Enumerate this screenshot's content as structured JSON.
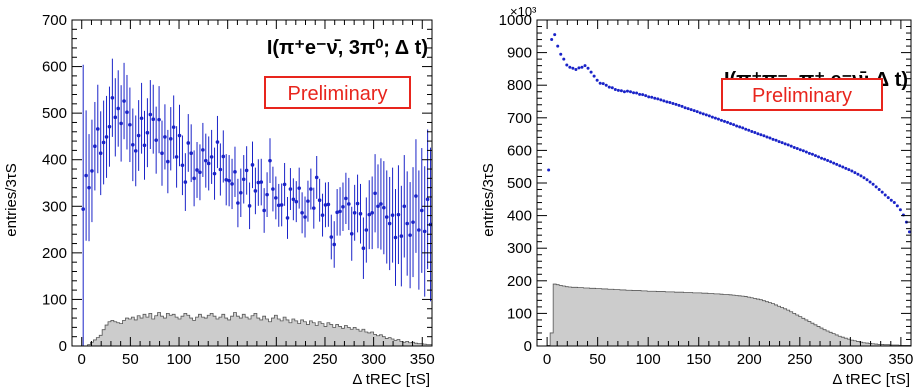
{
  "panels": [
    {
      "ylabel": "entries/3τS",
      "title": "I(π⁺e⁻ν̄, 3π⁰; Δ t)",
      "badge": "Preliminary",
      "xlabel": "Δ tREC [τS]",
      "exponent": "",
      "xticks": [
        "0",
        "50",
        "100",
        "150",
        "200",
        "250",
        "300",
        "350"
      ],
      "yticks": [
        "0",
        "100",
        "200",
        "300",
        "400",
        "500",
        "600",
        "700"
      ]
    },
    {
      "ylabel": "entries/3τS",
      "title": "I(π⁺π⁻, π⁺ e⁻ν̄; Δ t)",
      "badge": "Preliminary",
      "xlabel": "Δ tREC [τS]",
      "exponent": "×10³",
      "xticks": [
        "0",
        "50",
        "100",
        "150",
        "200",
        "250",
        "300",
        "350"
      ],
      "yticks": [
        "0",
        "100",
        "200",
        "300",
        "400",
        "500",
        "600",
        "700",
        "800",
        "900",
        "1000"
      ]
    }
  ],
  "chart_data": [
    {
      "type": "scatter",
      "title": "I(π⁺e⁻ν̄, 3π⁰; Δ t)",
      "xlabel": "Δ tREC [τS]",
      "ylabel": "entries/3τS",
      "xlim": [
        -10,
        360
      ],
      "ylim": [
        0,
        700
      ],
      "colors": {
        "data": "#1a23c8",
        "histogram_fill": "#cccccc",
        "histogram_line": "#555555",
        "badge": "#e8251d"
      },
      "data_points": {
        "x": [
          1.5,
          4.5,
          7.5,
          10.5,
          13.5,
          16.5,
          19.5,
          22.5,
          25.5,
          28.5,
          31.5,
          34.5,
          37.5,
          40.5,
          43.5,
          46.5,
          49.5,
          52.5,
          55.5,
          58.5,
          61.5,
          64.5,
          67.5,
          70.5,
          73.5,
          76.5,
          79.5,
          82.5,
          85.5,
          88.5,
          91.5,
          94.5,
          97.5,
          100.5,
          103.5,
          106.5,
          109.5,
          112.5,
          115.5,
          118.5,
          121.5,
          124.5,
          127.5,
          130.5,
          133.5,
          136.5,
          139.5,
          142.5,
          145.5,
          148.5,
          151.5,
          154.5,
          157.5,
          160.5,
          163.5,
          166.5,
          169.5,
          172.5,
          175.5,
          178.5,
          181.5,
          184.5,
          187.5,
          190.5,
          193.5,
          196.5,
          199.5,
          202.5,
          205.5,
          208.5,
          211.5,
          214.5,
          217.5,
          220.5,
          223.5,
          226.5,
          229.5,
          232.5,
          235.5,
          238.5,
          241.5,
          244.5,
          247.5,
          250.5,
          253.5,
          256.5,
          259.5,
          262.5,
          265.5,
          268.5,
          271.5,
          274.5,
          277.5,
          280.5,
          283.5,
          286.5,
          289.5,
          292.5,
          295.5,
          298.5,
          301.5,
          304.5,
          307.5,
          310.5,
          313.5,
          316.5,
          319.5,
          322.5,
          325.5,
          328.5,
          331.5,
          334.5,
          337.5,
          340.5,
          343.5,
          346.5,
          349.5,
          352.5,
          355.5,
          358.5
        ],
        "y": [
          294,
          366,
          340,
          376,
          429,
          466,
          414,
          437,
          449,
          471,
          533,
          491,
          510,
          478,
          526,
          502,
          475,
          432,
          419,
          452,
          489,
          431,
          458,
          497,
          487,
          442,
          486,
          414,
          449,
          396,
          445,
          470,
          406,
          452,
          388,
          352,
          436,
          414,
          360,
          378,
          373,
          421,
          398,
          392,
          406,
          370,
          438,
          379,
          407,
          357,
          355,
          348,
          374,
          307,
          329,
          358,
          377,
          301,
          389,
          333,
          351,
          352,
          291,
          325,
          398,
          337,
          318,
          302,
          303,
          347,
          275,
          337,
          315,
          310,
          339,
          286,
          277,
          311,
          337,
          296,
          362,
          313,
          281,
          303,
          304,
          234,
          218,
          287,
          289,
          299,
          317,
          305,
          241,
          286,
          306,
          284,
          210,
          249,
          282,
          286,
          328,
          300,
          305,
          297,
          277,
          263,
          281,
          233,
          282,
          236,
          300,
          263,
          238,
          266,
          322,
          249,
          291,
          246,
          315,
          261
        ],
        "yerr": [
          310,
          140,
          115,
          110,
          95,
          95,
          90,
          90,
          88,
          86,
          84,
          84,
          82,
          82,
          82,
          80,
          80,
          78,
          76,
          76,
          76,
          74,
          74,
          74,
          74,
          72,
          72,
          70,
          70,
          68,
          68,
          68,
          66,
          66,
          64,
          62,
          62,
          62,
          60,
          60,
          60,
          58,
          58,
          58,
          58,
          56,
          56,
          56,
          56,
          55,
          55,
          54,
          54,
          52,
          52,
          52,
          52,
          50,
          50,
          50,
          50,
          50,
          48,
          48,
          48,
          48,
          46,
          46,
          46,
          46,
          45,
          45,
          45,
          44,
          44,
          44,
          44,
          44,
          44,
          44,
          46,
          46,
          46,
          48,
          48,
          48,
          50,
          50,
          52,
          52,
          55,
          56,
          58,
          60,
          62,
          64,
          66,
          70,
          74,
          78,
          84,
          90,
          98,
          100,
          100,
          100,
          102,
          104,
          106,
          108,
          110,
          112,
          114,
          118,
          122,
          128,
          134,
          140,
          150,
          165
        ]
      },
      "histogram": {
        "bin_width": 3,
        "x_start": 0,
        "values": [
          0,
          0,
          3,
          8,
          13,
          18,
          23,
          35,
          45,
          52,
          55,
          52,
          50,
          48,
          55,
          60,
          58,
          62,
          56,
          65,
          60,
          68,
          62,
          70,
          58,
          65,
          72,
          64,
          60,
          70,
          66,
          68,
          62,
          58,
          64,
          70,
          66,
          60,
          55,
          62,
          68,
          62,
          60,
          66,
          70,
          64,
          58,
          62,
          68,
          60,
          56,
          64,
          72,
          64,
          60,
          68,
          62,
          58,
          65,
          70,
          60,
          56,
          64,
          58,
          52,
          60,
          66,
          58,
          54,
          62,
          56,
          50,
          58,
          54,
          48,
          56,
          52,
          46,
          54,
          50,
          44,
          52,
          48,
          42,
          50,
          46,
          40,
          46,
          42,
          38,
          44,
          40,
          36,
          40,
          36,
          32,
          36,
          30,
          28,
          30,
          25,
          22,
          24,
          20,
          16,
          18,
          15,
          12,
          14,
          10,
          8,
          10,
          7,
          8,
          6,
          5,
          5,
          4,
          3,
          3
        ]
      }
    },
    {
      "type": "scatter",
      "title": "I(π⁺π⁻, π⁺ e⁻ν̄; Δ t)",
      "xlabel": "Δ tREC [τS]",
      "ylabel": "entries/3τS",
      "y_multiplier": "×10³",
      "xlim": [
        -10,
        360
      ],
      "ylim": [
        0,
        1000
      ],
      "colors": {
        "data": "#1a23c8",
        "histogram_fill": "#cccccc",
        "histogram_line": "#555555",
        "badge": "#e8251d"
      },
      "data_points": {
        "x": [
          1.5,
          4.5,
          7.5,
          10.5,
          13.5,
          16.5,
          19.5,
          22.5,
          25.5,
          28.5,
          31.5,
          34.5,
          37.5,
          40.5,
          43.5,
          46.5,
          49.5,
          52.5,
          55.5,
          58.5,
          61.5,
          64.5,
          67.5,
          70.5,
          73.5,
          76.5,
          79.5,
          82.5,
          85.5,
          88.5,
          91.5,
          94.5,
          97.5,
          100.5,
          103.5,
          106.5,
          109.5,
          112.5,
          115.5,
          118.5,
          121.5,
          124.5,
          127.5,
          130.5,
          133.5,
          136.5,
          139.5,
          142.5,
          145.5,
          148.5,
          151.5,
          154.5,
          157.5,
          160.5,
          163.5,
          166.5,
          169.5,
          172.5,
          175.5,
          178.5,
          181.5,
          184.5,
          187.5,
          190.5,
          193.5,
          196.5,
          199.5,
          202.5,
          205.5,
          208.5,
          211.5,
          214.5,
          217.5,
          220.5,
          223.5,
          226.5,
          229.5,
          232.5,
          235.5,
          238.5,
          241.5,
          244.5,
          247.5,
          250.5,
          253.5,
          256.5,
          259.5,
          262.5,
          265.5,
          268.5,
          271.5,
          274.5,
          277.5,
          280.5,
          283.5,
          286.5,
          289.5,
          292.5,
          295.5,
          298.5,
          301.5,
          304.5,
          307.5,
          310.5,
          313.5,
          316.5,
          319.5,
          322.5,
          325.5,
          328.5,
          331.5,
          334.5,
          337.5,
          340.5,
          343.5,
          346.5,
          349.5,
          352.5,
          355.5,
          358.5
        ],
        "y": [
          540,
          940,
          955,
          920,
          895,
          880,
          862,
          855,
          852,
          848,
          853,
          855,
          860,
          852,
          840,
          828,
          815,
          806,
          805,
          800,
          794,
          792,
          787,
          784,
          783,
          780,
          782,
          780,
          777,
          776,
          772,
          771,
          768,
          764,
          763,
          760,
          758,
          755,
          752,
          749,
          747,
          744,
          741,
          738,
          735,
          731,
          728,
          725,
          722,
          719,
          715,
          712,
          709,
          706,
          702,
          699,
          696,
          692,
          689,
          686,
          682,
          679,
          675,
          672,
          669,
          665,
          662,
          658,
          655,
          651,
          648,
          645,
          641,
          638,
          634,
          631,
          627,
          624,
          620,
          617,
          613,
          609,
          606,
          602,
          599,
          595,
          591,
          588,
          584,
          580,
          576,
          573,
          569,
          565,
          561,
          557,
          553,
          549,
          545,
          541,
          537,
          532,
          527,
          522,
          516,
          510,
          503,
          496,
          488,
          480,
          472,
          463,
          455,
          447,
          440,
          430,
          418,
          402,
          380,
          350
        ]
      },
      "histogram": {
        "bin_width": 3,
        "x_start": 0,
        "values": [
          2,
          40,
          190,
          188,
          186,
          184,
          182,
          181,
          180,
          180,
          179,
          179,
          178,
          178,
          177,
          177,
          176,
          176,
          175,
          175,
          174,
          174,
          173,
          173,
          172,
          172,
          171,
          171,
          170,
          170,
          170,
          169,
          169,
          168,
          168,
          168,
          167,
          167,
          167,
          166,
          166,
          166,
          165,
          165,
          165,
          164,
          164,
          164,
          163,
          163,
          163,
          162,
          162,
          161,
          161,
          160,
          160,
          159,
          158,
          158,
          157,
          156,
          155,
          154,
          153,
          152,
          150,
          148,
          146,
          144,
          142,
          139,
          136,
          133,
          130,
          126,
          122,
          118,
          114,
          110,
          105,
          100,
          95,
          90,
          85,
          80,
          75,
          70,
          65,
          60,
          55,
          50,
          46,
          42,
          38,
          34,
          30,
          27,
          24,
          21,
          18,
          16,
          14,
          12,
          10,
          9,
          8,
          7,
          6,
          5,
          5,
          4,
          4,
          3,
          3,
          3,
          2,
          2,
          2,
          2
        ]
      }
    }
  ]
}
